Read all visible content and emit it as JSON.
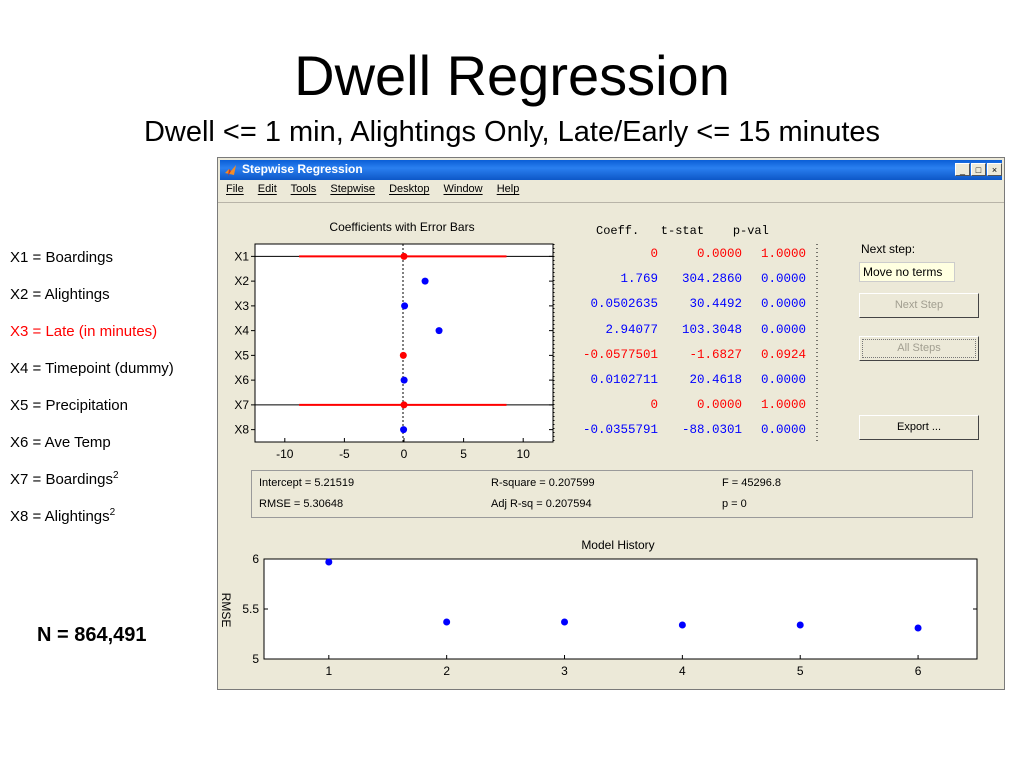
{
  "slide": {
    "title": "Dwell Regression",
    "subtitle": "Dwell <= 1 min, Alightings Only, Late/Early <= 15 minutes",
    "n_label": "N = 864,491",
    "legend": [
      {
        "text": "X1 = Boardings",
        "sup": "",
        "color": "#000000"
      },
      {
        "text": "X2 = Alightings",
        "sup": "",
        "color": "#000000"
      },
      {
        "text": "X3 = Late (in minutes)",
        "sup": "",
        "color": "#ff0000"
      },
      {
        "text": "X4 = Timepoint (dummy)",
        "sup": "",
        "color": "#000000"
      },
      {
        "text": "X5 = Precipitation",
        "sup": "",
        "color": "#000000"
      },
      {
        "text": "X6 = Ave Temp",
        "sup": "",
        "color": "#000000"
      },
      {
        "text": "X7 = Boardings",
        "sup": "2",
        "color": "#000000"
      },
      {
        "text": "X8 = Alightings",
        "sup": "2",
        "color": "#000000"
      }
    ]
  },
  "window": {
    "title": "Stepwise Regression",
    "menu": [
      "File",
      "Edit",
      "Tools",
      "Stepwise",
      "Desktop",
      "Window",
      "Help"
    ],
    "controls": {
      "minimize": "_",
      "maximize": "□",
      "close": "×"
    },
    "table_header": "Coeff.   t-stat    p-val",
    "table": [
      {
        "coeff": "0",
        "tstat": "0.0000",
        "pval": "1.0000",
        "color": "#ff0000"
      },
      {
        "coeff": "1.769",
        "tstat": "304.2860",
        "pval": "0.0000",
        "color": "#0000ff"
      },
      {
        "coeff": "0.0502635",
        "tstat": "30.4492",
        "pval": "0.0000",
        "color": "#0000ff"
      },
      {
        "coeff": "2.94077",
        "tstat": "103.3048",
        "pval": "0.0000",
        "color": "#0000ff"
      },
      {
        "coeff": "-0.0577501",
        "tstat": "-1.6827",
        "pval": "0.0924",
        "color": "#ff0000"
      },
      {
        "coeff": "0.0102711",
        "tstat": "20.4618",
        "pval": "0.0000",
        "color": "#0000ff"
      },
      {
        "coeff": "0",
        "tstat": "0.0000",
        "pval": "1.0000",
        "color": "#ff0000"
      },
      {
        "coeff": "-0.0355791",
        "tstat": "-88.0301",
        "pval": "0.0000",
        "color": "#0000ff"
      }
    ],
    "next_step_label": "Next step:",
    "next_step_value": "Move no terms",
    "buttons": {
      "next_step": "Next Step",
      "all_steps": "All Steps",
      "export": "Export ..."
    },
    "stats": {
      "intercept": "Intercept = 5.21519",
      "rsquare": "R-square = 0.207599",
      "f": "F = 45296.8",
      "rmse": "RMSE = 5.30648",
      "adj_rsq": "Adj R-sq = 0.207594",
      "p": "p = 0"
    }
  },
  "chart_data": [
    {
      "type": "scatter",
      "title": "Coefficients with Error Bars",
      "categories": [
        "X1",
        "X2",
        "X3",
        "X4",
        "X5",
        "X6",
        "X7",
        "X8"
      ],
      "values": [
        0,
        1.769,
        0.0502635,
        2.94077,
        -0.0577501,
        0.0102711,
        0,
        -0.0355791
      ],
      "error_low": [
        -8.8,
        1.769,
        0.0502635,
        2.94077,
        -0.0577501,
        0.0102711,
        -8.8,
        -0.0355791
      ],
      "error_high": [
        8.6,
        1.769,
        0.0502635,
        2.94077,
        -0.0577501,
        0.0102711,
        8.6,
        -0.0355791
      ],
      "in_model": [
        false,
        true,
        true,
        true,
        false,
        true,
        false,
        true
      ],
      "xticks": [
        -10,
        -5,
        0,
        5,
        10
      ],
      "xlim": [
        -12.5,
        12.5
      ],
      "colors": {
        "in": "#0000ff",
        "out": "#ff0000"
      }
    },
    {
      "type": "scatter",
      "title": "Model History",
      "ylabel": "RMSE",
      "x": [
        1,
        2,
        3,
        4,
        5,
        6
      ],
      "y": [
        5.97,
        5.37,
        5.37,
        5.34,
        5.34,
        5.31
      ],
      "xticks": [
        1,
        2,
        3,
        4,
        5,
        6
      ],
      "yticks": [
        5,
        5.5,
        6
      ],
      "xlim": [
        0.45,
        6.5
      ],
      "ylim": [
        5,
        6
      ],
      "color": "#0000ff"
    }
  ]
}
